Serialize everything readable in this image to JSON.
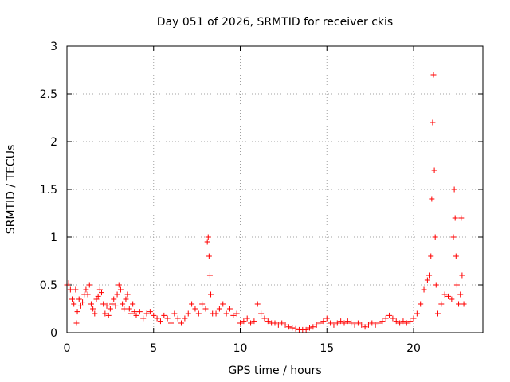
{
  "chart_data": {
    "type": "scatter",
    "title": "Day 051 of 2026, SRMTID for receiver ckis",
    "xlabel": "GPS time / hours",
    "ylabel": "SRMTID / TECUs",
    "xlim": [
      0,
      24
    ],
    "ylim": [
      0,
      3
    ],
    "xticks": [
      0,
      5,
      10,
      15,
      20
    ],
    "yticks": [
      0,
      0.5,
      1,
      1.5,
      2,
      2.5,
      3
    ],
    "xtick_labels": [
      "0",
      "5",
      "10",
      "15",
      "20"
    ],
    "ytick_labels": [
      "0",
      "0.5",
      "1",
      "1.5",
      "2",
      "2.5",
      "3"
    ],
    "grid": true,
    "marker": "+",
    "color": "#ff0000",
    "series": [
      {
        "name": "SRMTID",
        "points": [
          [
            0.0,
            0.5
          ],
          [
            0.1,
            0.52
          ],
          [
            0.2,
            0.45
          ],
          [
            0.3,
            0.35
          ],
          [
            0.4,
            0.3
          ],
          [
            0.5,
            0.45
          ],
          [
            0.55,
            0.1
          ],
          [
            0.6,
            0.22
          ],
          [
            0.7,
            0.35
          ],
          [
            0.8,
            0.28
          ],
          [
            0.9,
            0.32
          ],
          [
            1.0,
            0.4
          ],
          [
            1.1,
            0.45
          ],
          [
            1.2,
            0.4
          ],
          [
            1.3,
            0.5
          ],
          [
            1.4,
            0.3
          ],
          [
            1.5,
            0.25
          ],
          [
            1.6,
            0.2
          ],
          [
            1.7,
            0.35
          ],
          [
            1.8,
            0.38
          ],
          [
            1.9,
            0.45
          ],
          [
            2.0,
            0.42
          ],
          [
            2.1,
            0.3
          ],
          [
            2.2,
            0.2
          ],
          [
            2.3,
            0.28
          ],
          [
            2.4,
            0.18
          ],
          [
            2.5,
            0.25
          ],
          [
            2.6,
            0.3
          ],
          [
            2.7,
            0.35
          ],
          [
            2.8,
            0.28
          ],
          [
            2.9,
            0.4
          ],
          [
            3.0,
            0.5
          ],
          [
            3.1,
            0.45
          ],
          [
            3.2,
            0.3
          ],
          [
            3.3,
            0.25
          ],
          [
            3.4,
            0.35
          ],
          [
            3.5,
            0.4
          ],
          [
            3.6,
            0.25
          ],
          [
            3.7,
            0.2
          ],
          [
            3.8,
            0.3
          ],
          [
            3.9,
            0.22
          ],
          [
            4.0,
            0.18
          ],
          [
            4.2,
            0.22
          ],
          [
            4.4,
            0.15
          ],
          [
            4.6,
            0.2
          ],
          [
            4.8,
            0.22
          ],
          [
            5.0,
            0.18
          ],
          [
            5.2,
            0.15
          ],
          [
            5.4,
            0.12
          ],
          [
            5.6,
            0.18
          ],
          [
            5.8,
            0.15
          ],
          [
            6.0,
            0.1
          ],
          [
            6.2,
            0.2
          ],
          [
            6.4,
            0.15
          ],
          [
            6.6,
            0.1
          ],
          [
            6.8,
            0.15
          ],
          [
            7.0,
            0.2
          ],
          [
            7.2,
            0.3
          ],
          [
            7.4,
            0.25
          ],
          [
            7.6,
            0.2
          ],
          [
            7.8,
            0.3
          ],
          [
            8.0,
            0.25
          ],
          [
            8.1,
            0.95
          ],
          [
            8.15,
            1.0
          ],
          [
            8.2,
            0.8
          ],
          [
            8.25,
            0.6
          ],
          [
            8.3,
            0.4
          ],
          [
            8.4,
            0.2
          ],
          [
            8.6,
            0.2
          ],
          [
            8.8,
            0.25
          ],
          [
            9.0,
            0.3
          ],
          [
            9.2,
            0.2
          ],
          [
            9.4,
            0.25
          ],
          [
            9.6,
            0.18
          ],
          [
            9.8,
            0.2
          ],
          [
            10.0,
            0.1
          ],
          [
            10.2,
            0.12
          ],
          [
            10.4,
            0.15
          ],
          [
            10.6,
            0.1
          ],
          [
            10.8,
            0.12
          ],
          [
            11.0,
            0.3
          ],
          [
            11.2,
            0.2
          ],
          [
            11.4,
            0.15
          ],
          [
            11.6,
            0.12
          ],
          [
            11.8,
            0.1
          ],
          [
            12.0,
            0.1
          ],
          [
            12.2,
            0.08
          ],
          [
            12.4,
            0.1
          ],
          [
            12.6,
            0.08
          ],
          [
            12.8,
            0.06
          ],
          [
            13.0,
            0.05
          ],
          [
            13.2,
            0.04
          ],
          [
            13.4,
            0.03
          ],
          [
            13.6,
            0.03
          ],
          [
            13.8,
            0.03
          ],
          [
            14.0,
            0.05
          ],
          [
            14.2,
            0.06
          ],
          [
            14.4,
            0.08
          ],
          [
            14.6,
            0.1
          ],
          [
            14.8,
            0.12
          ],
          [
            15.0,
            0.15
          ],
          [
            15.2,
            0.1
          ],
          [
            15.4,
            0.08
          ],
          [
            15.6,
            0.1
          ],
          [
            15.8,
            0.12
          ],
          [
            16.0,
            0.1
          ],
          [
            16.2,
            0.12
          ],
          [
            16.4,
            0.1
          ],
          [
            16.6,
            0.08
          ],
          [
            16.8,
            0.1
          ],
          [
            17.0,
            0.08
          ],
          [
            17.2,
            0.06
          ],
          [
            17.4,
            0.08
          ],
          [
            17.6,
            0.1
          ],
          [
            17.8,
            0.08
          ],
          [
            18.0,
            0.1
          ],
          [
            18.2,
            0.12
          ],
          [
            18.4,
            0.15
          ],
          [
            18.6,
            0.18
          ],
          [
            18.8,
            0.15
          ],
          [
            19.0,
            0.12
          ],
          [
            19.2,
            0.1
          ],
          [
            19.4,
            0.12
          ],
          [
            19.6,
            0.1
          ],
          [
            19.8,
            0.12
          ],
          [
            20.0,
            0.15
          ],
          [
            20.2,
            0.2
          ],
          [
            20.4,
            0.3
          ],
          [
            20.6,
            0.45
          ],
          [
            20.8,
            0.55
          ],
          [
            20.9,
            0.6
          ],
          [
            21.0,
            0.8
          ],
          [
            21.05,
            1.4
          ],
          [
            21.1,
            2.2
          ],
          [
            21.15,
            2.7
          ],
          [
            21.2,
            1.7
          ],
          [
            21.25,
            1.0
          ],
          [
            21.3,
            0.5
          ],
          [
            21.4,
            0.2
          ],
          [
            21.6,
            0.3
          ],
          [
            21.8,
            0.4
          ],
          [
            22.0,
            0.38
          ],
          [
            22.2,
            0.35
          ],
          [
            22.3,
            1.0
          ],
          [
            22.35,
            1.5
          ],
          [
            22.4,
            1.2
          ],
          [
            22.45,
            0.8
          ],
          [
            22.5,
            0.5
          ],
          [
            22.6,
            0.3
          ],
          [
            22.7,
            0.4
          ],
          [
            22.75,
            1.2
          ],
          [
            22.8,
            0.6
          ],
          [
            22.9,
            0.3
          ]
        ]
      }
    ]
  }
}
